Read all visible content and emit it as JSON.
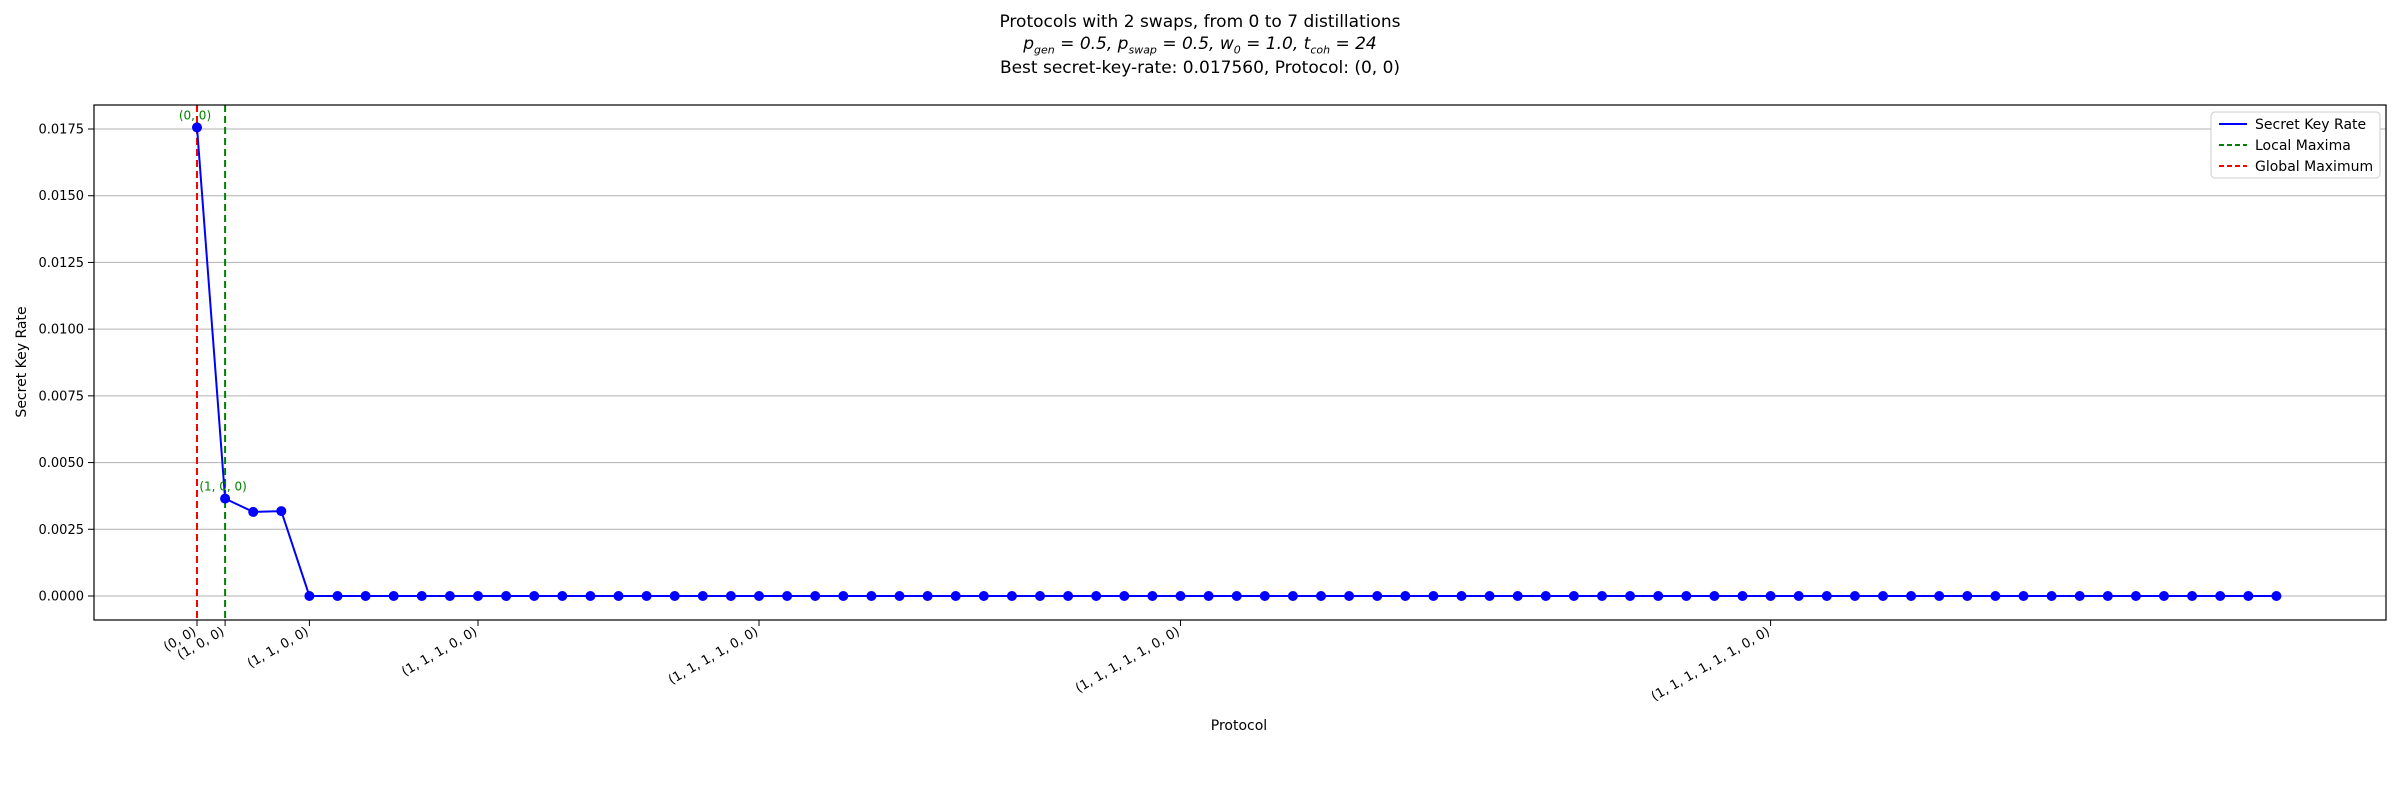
{
  "chart_data": {
    "type": "line",
    "title": "Protocols with 2 swaps, from 0 to 7 distillations",
    "subtitle": "p_gen = 0.5, p_swap = 0.5, w_0 = 1.0, t_coh = 24",
    "best_text": "Best secret-key-rate: 0.017560, Protocol: (0, 0)",
    "xlabel": "Protocol",
    "ylabel": "Secret Key Rate",
    "ylim": [
      -0.0009,
      0.0184
    ],
    "y_ticks": [
      "0.0000",
      "0.0025",
      "0.0050",
      "0.0075",
      "0.0100",
      "0.0125",
      "0.0150",
      "0.0175"
    ],
    "y_tick_values": [
      0,
      0.0025,
      0.005,
      0.0075,
      0.01,
      0.0125,
      0.015,
      0.0175
    ],
    "x_ticks": [
      {
        "index": 0,
        "label": "(0, 0)"
      },
      {
        "index": 1,
        "label": "(1, 0, 0)"
      },
      {
        "index": 4,
        "label": "(1, 1, 0, 0)"
      },
      {
        "index": 10,
        "label": "(1, 1, 1, 0, 0)"
      },
      {
        "index": 20,
        "label": "(1, 1, 1, 1, 0, 0)"
      },
      {
        "index": 35,
        "label": "(1, 1, 1, 1, 1, 0, 0)"
      },
      {
        "index": 56,
        "label": "(1, 1, 1, 1, 1, 1, 0, 0)"
      }
    ],
    "num_points": 75,
    "series": [
      {
        "name": "Secret Key Rate",
        "color": "#0000ff",
        "values": [
          0.01756,
          0.00365,
          0.00315,
          0.00318,
          0,
          0,
          0,
          0,
          0,
          0,
          0,
          0,
          0,
          0,
          0,
          0,
          0,
          0,
          0,
          0,
          0,
          0,
          0,
          0,
          0,
          0,
          0,
          0,
          0,
          0,
          0,
          0,
          0,
          0,
          0,
          0,
          0,
          0,
          0,
          0,
          0,
          0,
          0,
          0,
          0,
          0,
          0,
          0,
          0,
          0,
          0,
          0,
          0,
          0,
          0,
          0,
          0,
          0,
          0,
          0,
          0,
          0,
          0,
          0,
          0,
          0,
          0,
          0,
          0,
          0,
          0,
          0,
          0,
          0,
          0
        ]
      }
    ],
    "local_maxima": [
      0,
      1
    ],
    "global_maximum": 0,
    "annotations": [
      {
        "index": 0,
        "value": 0.01756,
        "text": "(0, 0)"
      },
      {
        "index": 1,
        "value": 0.00365,
        "text": "(1, 0, 0)"
      }
    ],
    "legend": {
      "position": "top-right",
      "entries": [
        {
          "label": "Secret Key Rate",
          "style": "solid",
          "color": "#0000ff"
        },
        {
          "label": "Local Maxima",
          "style": "dashed",
          "color": "#008000"
        },
        {
          "label": "Global Maximum",
          "style": "dashed",
          "color": "#ff0000"
        }
      ]
    },
    "grid": "horizontal"
  }
}
